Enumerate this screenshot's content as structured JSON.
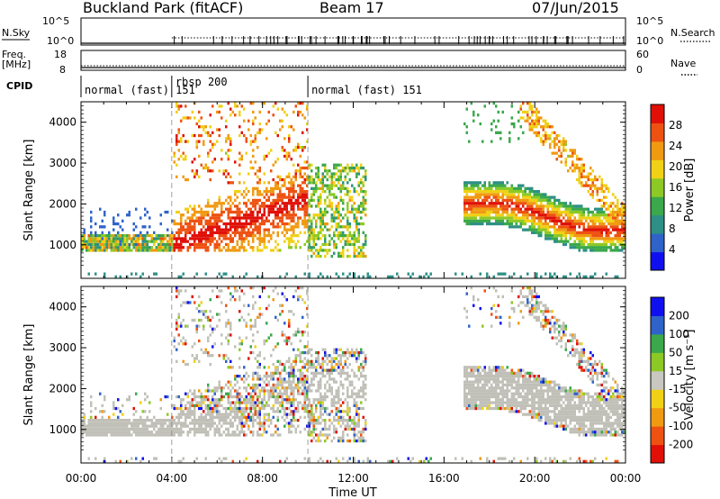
{
  "header": {
    "title": "Buckland Park (fitACF)",
    "beam": "Beam 17",
    "date": "07/Jun/2015"
  },
  "left_labels": {
    "nsky": "N.Sky",
    "freq": "Freq.",
    "freq_unit": "[MHz]",
    "cpid": "CPID"
  },
  "right_labels": {
    "nsearch": "N.Search",
    "nave": "Nave"
  },
  "sky_ticks": {
    "left": [
      "10^5",
      "10^0"
    ],
    "right": [
      "10^5",
      "10^0"
    ]
  },
  "freq_ticks": {
    "left": [
      "18",
      "8"
    ],
    "right": [
      "60",
      "0"
    ]
  },
  "cpid_segments": [
    {
      "label": "normal (fast) 151",
      "start_hour": 0,
      "end_hour": 4
    },
    {
      "label": "rbsp 200",
      "start_hour": 4,
      "end_hour": 10
    },
    {
      "label": "normal (fast) 151",
      "start_hour": 10,
      "end_hour": 24
    }
  ],
  "colorbar_power": {
    "label": "Power [dB]",
    "ticks": [
      "28",
      "24",
      "20",
      "16",
      "12",
      "8",
      "4"
    ]
  },
  "colorbar_velocity": {
    "label": "Velocity [m s⁻¹]",
    "ticks": [
      "200",
      "100",
      "50",
      "15",
      "-15",
      "-50",
      "-100",
      "-200"
    ]
  },
  "chart_data": [
    {
      "type": "heatmap",
      "name": "Power",
      "xlabel": "Time UT",
      "ylabel": "Slant Range [km]",
      "x_ticks": [
        "00:00",
        "04:00",
        "08:00",
        "12:00",
        "16:00",
        "20:00",
        "00:00"
      ],
      "xlim_hours": [
        0,
        24
      ],
      "y_ticks": [
        1000,
        2000,
        3000,
        4000
      ],
      "ylim": [
        180,
        4500
      ],
      "colorbar": {
        "label": "Power [dB]",
        "range": [
          0,
          32
        ],
        "colors": [
          "#1010ee",
          "#2f63c9",
          "#2e8f86",
          "#3aa84b",
          "#8dc926",
          "#f0d116",
          "#f09a12",
          "#ee5212",
          "#e01008"
        ]
      }
    },
    {
      "type": "heatmap",
      "name": "Velocity",
      "xlabel": "Time UT",
      "ylabel": "Slant Range [km]",
      "x_ticks": [
        "00:00",
        "04:00",
        "08:00",
        "12:00",
        "16:00",
        "20:00",
        "00:00"
      ],
      "xlim_hours": [
        0,
        24
      ],
      "y_ticks": [
        1000,
        2000,
        3000,
        4000
      ],
      "ylim": [
        180,
        4500
      ],
      "colorbar": {
        "label": "Velocity [m s⁻¹]",
        "range": [
          -250,
          250
        ],
        "colors": [
          "#e01008",
          "#ee5212",
          "#f09a12",
          "#f0d116",
          "#c8c8c0",
          "#8dc926",
          "#3aa84b",
          "#2f63c9",
          "#1010ee"
        ]
      }
    }
  ],
  "colors": {
    "ground_scatter": "#c0c0b8",
    "axis": "#000000"
  }
}
